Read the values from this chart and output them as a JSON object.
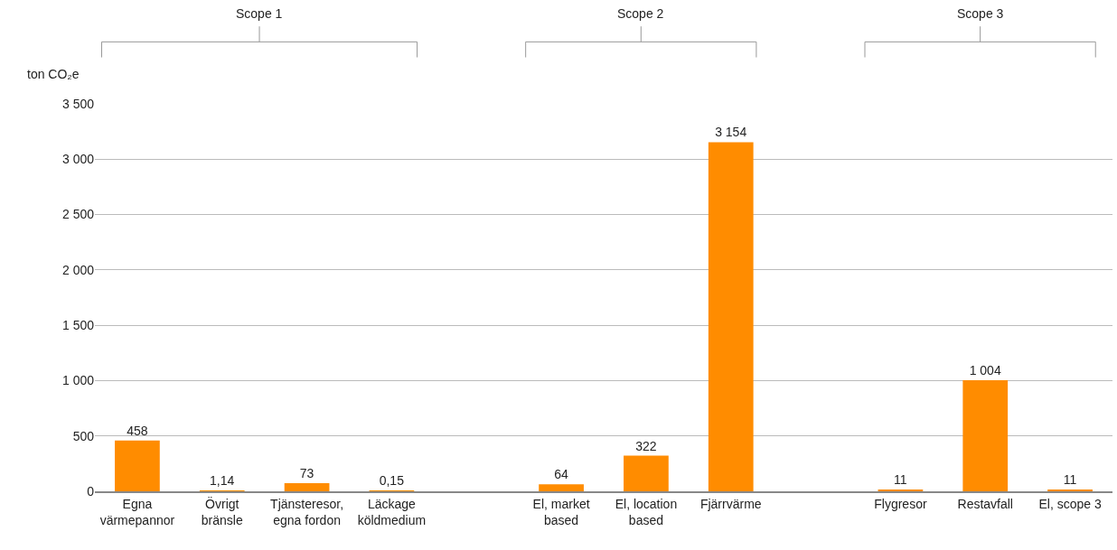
{
  "chart_data": {
    "type": "bar",
    "ylabel": "ton CO₂e",
    "categories": [
      "Egna värmepannor",
      "Övrigt bränsle",
      "Tjänsteresor, egna fordon",
      "Läckage köldmedium",
      null,
      "El, market based",
      "El, location based",
      "Fjärrvärme",
      null,
      "Flygresor",
      "Restavfall",
      "El, scope 3"
    ],
    "values": [
      458,
      1.14,
      73,
      0.15,
      null,
      64,
      322,
      3154,
      null,
      11,
      1004,
      11
    ],
    "value_labels": [
      "458",
      "1,14",
      "73",
      "0,15",
      null,
      "64",
      "322",
      "3 154",
      null,
      "11",
      "1 004",
      "11"
    ],
    "color": "#ff8c00",
    "ylim": [
      0,
      3500
    ],
    "yticks": [
      0,
      {
        "value": 500,
        "label": "500"
      },
      {
        "value": 1000,
        "label": "1 000"
      },
      {
        "value": 1500,
        "label": "1 500"
      },
      {
        "value": 2000,
        "label": "2 000"
      },
      {
        "value": 2500,
        "label": "2 500"
      },
      {
        "value": 3000,
        "label": "3 000"
      },
      {
        "value": 3500,
        "label": "3 500"
      }
    ],
    "grid": "y",
    "legend": false,
    "annotations": [
      "Scope 1",
      "Scope 2",
      "Scope 3"
    ]
  }
}
